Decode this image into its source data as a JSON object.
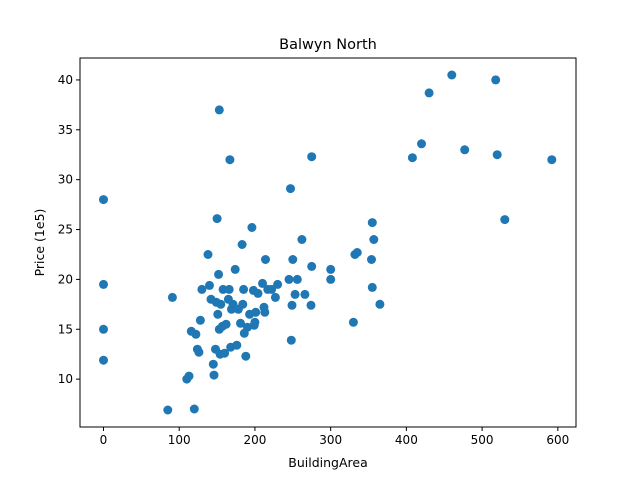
{
  "chart_data": {
    "type": "scatter",
    "title": "Balwyn North",
    "xlabel": "BuildingArea",
    "ylabel": "Price (1e5)",
    "xlim": [
      -31,
      624
    ],
    "ylim": [
      5.2,
      42.2
    ],
    "xticks": [
      0,
      100,
      200,
      300,
      400,
      500,
      600
    ],
    "yticks": [
      10,
      15,
      20,
      25,
      30,
      35,
      40
    ],
    "grid": false,
    "legend": "none",
    "marker_color": "#1f77b4",
    "series": [
      {
        "points": [
          [
            0,
            28.0
          ],
          [
            0,
            19.5
          ],
          [
            0,
            15.0
          ],
          [
            0,
            11.9
          ],
          [
            85,
            6.9
          ],
          [
            91,
            18.2
          ],
          [
            110,
            10.0
          ],
          [
            113,
            10.3
          ],
          [
            116,
            14.8
          ],
          [
            120,
            7.0
          ],
          [
            122,
            14.5
          ],
          [
            124,
            13.0
          ],
          [
            126,
            12.7
          ],
          [
            128,
            15.9
          ],
          [
            130,
            19.0
          ],
          [
            138,
            22.5
          ],
          [
            140,
            19.4
          ],
          [
            142,
            18.0
          ],
          [
            145,
            11.5
          ],
          [
            146,
            10.4
          ],
          [
            148,
            13.0
          ],
          [
            149,
            17.7
          ],
          [
            150,
            26.1
          ],
          [
            151,
            16.5
          ],
          [
            152,
            20.5
          ],
          [
            153,
            37.0
          ],
          [
            153,
            15.0
          ],
          [
            154,
            12.5
          ],
          [
            155,
            17.5
          ],
          [
            157,
            15.3
          ],
          [
            158,
            19.0
          ],
          [
            160,
            12.6
          ],
          [
            162,
            15.5
          ],
          [
            165,
            18.0
          ],
          [
            166,
            19.0
          ],
          [
            167,
            32.0
          ],
          [
            168,
            13.2
          ],
          [
            169,
            17.0
          ],
          [
            171,
            17.5
          ],
          [
            174,
            21.0
          ],
          [
            176,
            13.4
          ],
          [
            178,
            17.0
          ],
          [
            181,
            15.6
          ],
          [
            183,
            23.5
          ],
          [
            184,
            17.5
          ],
          [
            185,
            19.0
          ],
          [
            186,
            14.6
          ],
          [
            188,
            12.3
          ],
          [
            190,
            15.2
          ],
          [
            193,
            16.5
          ],
          [
            196,
            25.2
          ],
          [
            198,
            18.9
          ],
          [
            199,
            15.4
          ],
          [
            200,
            15.7
          ],
          [
            201,
            16.7
          ],
          [
            204,
            18.6
          ],
          [
            210,
            19.6
          ],
          [
            212,
            17.2
          ],
          [
            213,
            16.7
          ],
          [
            214,
            22.0
          ],
          [
            217,
            19.0
          ],
          [
            222,
            19.0
          ],
          [
            227,
            18.2
          ],
          [
            230,
            19.5
          ],
          [
            245,
            20.0
          ],
          [
            247,
            29.1
          ],
          [
            248,
            13.9
          ],
          [
            249,
            17.4
          ],
          [
            250,
            22.0
          ],
          [
            253,
            18.5
          ],
          [
            256,
            20.0
          ],
          [
            262,
            24.0
          ],
          [
            266,
            18.5
          ],
          [
            274,
            17.4
          ],
          [
            275,
            21.3
          ],
          [
            275,
            32.3
          ],
          [
            300,
            21.0
          ],
          [
            300,
            20.0
          ],
          [
            330,
            15.7
          ],
          [
            332,
            22.5
          ],
          [
            335,
            22.7
          ],
          [
            354,
            22.0
          ],
          [
            355,
            25.7
          ],
          [
            355,
            19.2
          ],
          [
            357,
            24.0
          ],
          [
            365,
            17.5
          ],
          [
            408,
            32.2
          ],
          [
            420,
            33.6
          ],
          [
            430,
            38.7
          ],
          [
            460,
            40.5
          ],
          [
            477,
            33.0
          ],
          [
            518,
            40.0
          ],
          [
            520,
            32.5
          ],
          [
            530,
            26.0
          ],
          [
            592,
            32.0
          ]
        ]
      }
    ]
  }
}
